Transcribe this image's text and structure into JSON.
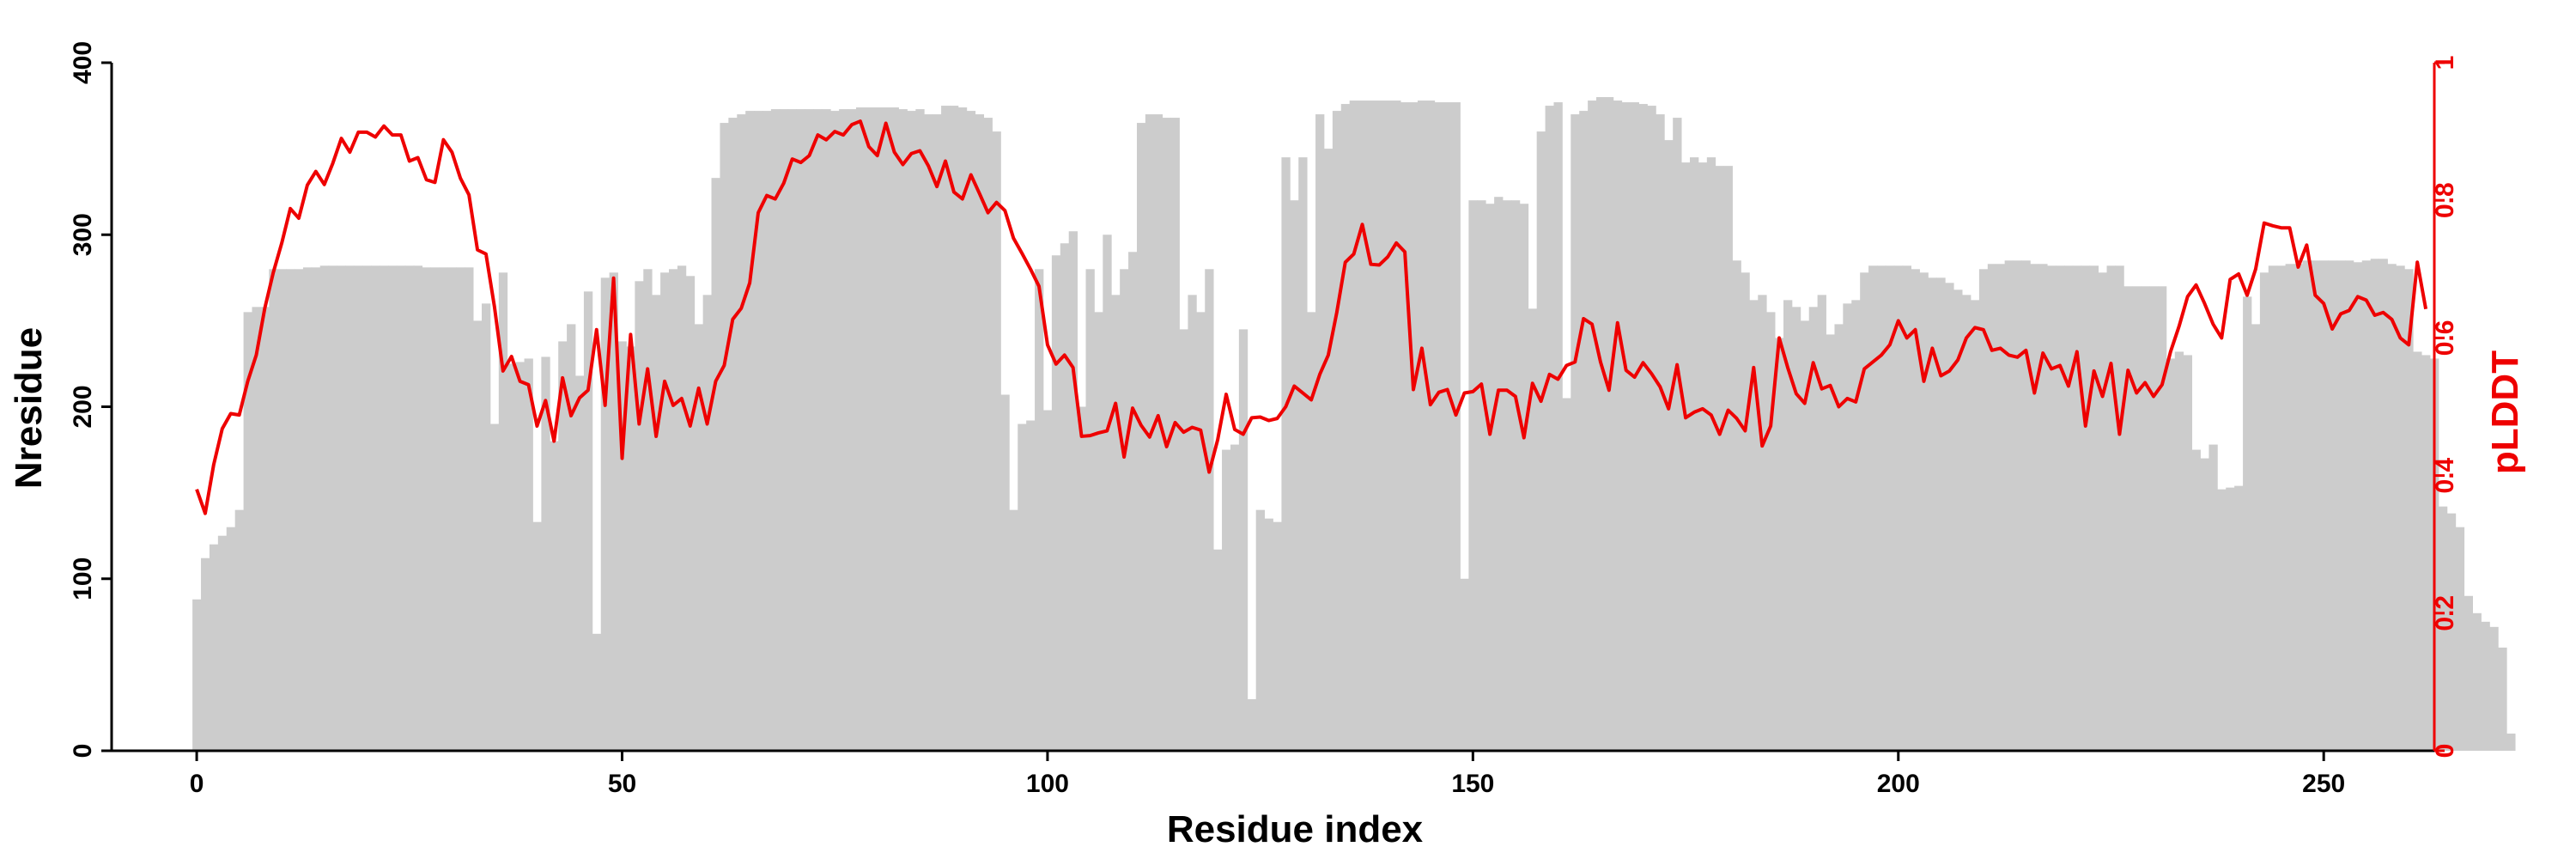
{
  "chart_data": {
    "type": "bar+line",
    "xlabel": "Residue index",
    "ylabel_left": "Nresidue",
    "ylabel_right": "pLDDT",
    "xlim": [
      -10,
      263
    ],
    "ylim_left": [
      0,
      400
    ],
    "ylim_right": [
      0,
      1
    ],
    "x_ticks": [
      "0",
      "50",
      "100",
      "150",
      "200",
      "250"
    ],
    "y_left_ticks": [
      "0",
      "100",
      "200",
      "300",
      "400"
    ],
    "y_right_ticks": [
      "0",
      "0.2",
      "0.4",
      "0.6",
      "0.8",
      "1"
    ],
    "grid": false,
    "colors": {
      "bars": "#cccccc",
      "line": "#ee0000",
      "axis_left": "#000000",
      "axis_right": "#ee0000"
    },
    "bars": {
      "name": "Nresidue",
      "x_start": 0,
      "values": [
        88,
        112,
        120,
        125,
        130,
        140,
        255,
        258,
        258,
        280,
        280,
        280,
        280,
        281,
        281,
        282,
        282,
        282,
        282,
        282,
        282,
        282,
        282,
        282,
        282,
        282,
        282,
        281,
        281,
        281,
        281,
        281,
        281,
        250,
        260,
        190,
        278,
        225,
        226,
        228,
        133,
        229,
        180,
        238,
        248,
        218,
        267,
        68,
        275,
        278,
        238,
        235,
        273,
        280,
        265,
        278,
        280,
        282,
        276,
        248,
        265,
        333,
        365,
        368,
        370,
        372,
        372,
        372,
        373,
        373,
        373,
        373,
        373,
        373,
        373,
        372,
        373,
        373,
        374,
        374,
        374,
        374,
        374,
        373,
        372,
        373,
        370,
        370,
        375,
        375,
        374,
        372,
        370,
        368,
        360,
        207,
        140,
        190,
        192,
        280,
        198,
        288,
        295,
        302,
        200,
        280,
        255,
        300,
        265,
        280,
        290,
        365,
        370,
        370,
        368,
        368,
        245,
        265,
        255,
        280,
        117,
        175,
        178,
        245,
        30,
        140,
        135,
        133,
        345,
        320,
        345,
        255,
        370,
        350,
        372,
        376,
        378,
        378,
        378,
        378,
        378,
        378,
        377,
        377,
        378,
        378,
        377,
        377,
        377,
        100,
        320,
        320,
        318,
        322,
        320,
        320,
        318,
        257,
        360,
        375,
        377,
        205,
        370,
        372,
        378,
        380,
        380,
        378,
        377,
        377,
        376,
        375,
        370,
        355,
        368,
        342,
        345,
        342,
        345,
        340,
        340,
        285,
        278,
        262,
        265,
        255,
        240,
        262,
        258,
        250,
        258,
        265,
        242,
        248,
        260,
        262,
        278,
        282,
        282,
        282,
        282,
        282,
        280,
        278,
        275,
        275,
        272,
        268,
        265,
        262,
        280,
        283,
        283,
        285,
        285,
        285,
        283,
        283,
        282,
        282,
        282,
        282,
        282,
        282,
        278,
        282,
        282,
        270,
        270,
        270,
        270,
        270,
        228,
        232,
        230,
        175,
        170,
        178,
        152,
        153,
        154,
        264,
        248,
        278,
        282,
        282,
        283,
        283,
        285,
        285,
        285,
        285,
        285,
        285,
        284,
        285,
        286,
        286,
        283,
        282,
        280,
        232,
        230,
        228,
        142,
        138,
        130,
        90,
        80,
        75,
        72,
        60,
        10
      ]
    },
    "series": [
      {
        "name": "pLDDT",
        "x_start": 0,
        "values": [
          0.38,
          0.345,
          0.416,
          0.468,
          0.49,
          0.488,
          0.537,
          0.575,
          0.643,
          0.695,
          0.738,
          0.788,
          0.774,
          0.822,
          0.842,
          0.823,
          0.854,
          0.89,
          0.87,
          0.899,
          0.899,
          0.892,
          0.908,
          0.895,
          0.895,
          0.857,
          0.862,
          0.83,
          0.826,
          0.888,
          0.87,
          0.832,
          0.808,
          0.728,
          0.722,
          0.645,
          0.552,
          0.573,
          0.537,
          0.532,
          0.472,
          0.509,
          0.45,
          0.542,
          0.487,
          0.513,
          0.524,
          0.612,
          0.502,
          0.687,
          0.425,
          0.605,
          0.475,
          0.555,
          0.457,
          0.537,
          0.502,
          0.512,
          0.472,
          0.527,
          0.475,
          0.537,
          0.56,
          0.627,
          0.643,
          0.68,
          0.782,
          0.807,
          0.802,
          0.825,
          0.86,
          0.855,
          0.865,
          0.895,
          0.888,
          0.9,
          0.895,
          0.91,
          0.915,
          0.878,
          0.865,
          0.912,
          0.87,
          0.852,
          0.868,
          0.872,
          0.85,
          0.82,
          0.857,
          0.812,
          0.802,
          0.837,
          0.81,
          0.782,
          0.797,
          0.785,
          0.745,
          0.723,
          0.7,
          0.675,
          0.59,
          0.562,
          0.575,
          0.557,
          0.457,
          0.458,
          0.462,
          0.465,
          0.505,
          0.427,
          0.498,
          0.473,
          0.456,
          0.487,
          0.442,
          0.477,
          0.463,
          0.47,
          0.466,
          0.405,
          0.452,
          0.518,
          0.467,
          0.46,
          0.484,
          0.485,
          0.48,
          0.483,
          0.5,
          0.53,
          0.52,
          0.51,
          0.547,
          0.575,
          0.637,
          0.71,
          0.722,
          0.765,
          0.707,
          0.706,
          0.718,
          0.738,
          0.725,
          0.525,
          0.585,
          0.503,
          0.521,
          0.525,
          0.488,
          0.52,
          0.522,
          0.533,
          0.46,
          0.524,
          0.524,
          0.515,
          0.455,
          0.534,
          0.508,
          0.547,
          0.54,
          0.56,
          0.565,
          0.628,
          0.62,
          0.565,
          0.524,
          0.622,
          0.553,
          0.543,
          0.564,
          0.548,
          0.529,
          0.497,
          0.561,
          0.484,
          0.492,
          0.497,
          0.488,
          0.46,
          0.495,
          0.483,
          0.465,
          0.557,
          0.443,
          0.472,
          0.6,
          0.557,
          0.519,
          0.505,
          0.564,
          0.526,
          0.531,
          0.5,
          0.512,
          0.507,
          0.555,
          0.565,
          0.575,
          0.59,
          0.625,
          0.6,
          0.612,
          0.537,
          0.585,
          0.545,
          0.552,
          0.568,
          0.6,
          0.615,
          0.612,
          0.582,
          0.585,
          0.575,
          0.572,
          0.582,
          0.52,
          0.578,
          0.555,
          0.56,
          0.53,
          0.58,
          0.472,
          0.552,
          0.515,
          0.563,
          0.46,
          0.553,
          0.52,
          0.535,
          0.515,
          0.532,
          0.58,
          0.617,
          0.66,
          0.677,
          0.65,
          0.62,
          0.6,
          0.685,
          0.693,
          0.662,
          0.7,
          0.767,
          0.763,
          0.76,
          0.76,
          0.703,
          0.735,
          0.662,
          0.65,
          0.613,
          0.635,
          0.64,
          0.66,
          0.655,
          0.633,
          0.637,
          0.627,
          0.6,
          0.59,
          0.71,
          0.642
        ]
      }
    ]
  }
}
